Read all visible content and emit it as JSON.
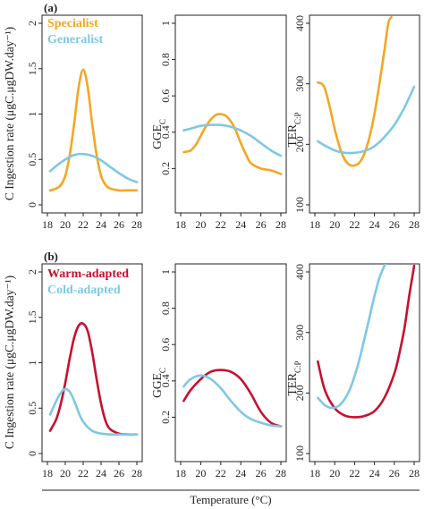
{
  "figure": {
    "xlabel": "Temperature (°C)",
    "left_ylabel": "C Ingestion rate (μgC.μgDW.day⁻¹)",
    "gge_ylabel_main": "GGE",
    "gge_ylabel_sub": "C",
    "ter_ylabel_main": "TER",
    "ter_ylabel_sub": "C:P"
  },
  "colors": {
    "orange": "#f5a623",
    "light_blue": "#7ec8e3",
    "red": "#c8102e"
  },
  "chart_data": [
    {
      "type": "line",
      "row": "a",
      "panel_label": "(a)",
      "quantity": "ingestion",
      "xlim": [
        18,
        28
      ],
      "ylim": [
        0,
        2
      ],
      "xticks": [
        18,
        20,
        22,
        24,
        26,
        28
      ],
      "yticks": [
        0,
        0.5,
        1,
        1.5,
        2
      ],
      "legend": [
        "Specialist",
        "Generalist"
      ],
      "series": [
        {
          "name": "Specialist",
          "color": "#f5a623",
          "x": [
            18.3,
            19,
            19.5,
            20,
            20.5,
            21,
            21.5,
            22,
            22.5,
            23,
            23.5,
            24,
            24.5,
            25,
            26,
            27,
            28
          ],
          "y": [
            0.16,
            0.18,
            0.22,
            0.32,
            0.55,
            0.9,
            1.3,
            1.49,
            1.3,
            0.9,
            0.55,
            0.32,
            0.22,
            0.18,
            0.16,
            0.16,
            0.16
          ]
        },
        {
          "name": "Generalist",
          "color": "#7ec8e3",
          "x": [
            18.3,
            19,
            20,
            21,
            22,
            23,
            24,
            25,
            26,
            27,
            28
          ],
          "y": [
            0.37,
            0.43,
            0.5,
            0.55,
            0.56,
            0.54,
            0.49,
            0.42,
            0.35,
            0.29,
            0.25
          ]
        }
      ]
    },
    {
      "type": "line",
      "row": "a",
      "quantity": "gge",
      "xlim": [
        18,
        28
      ],
      "ylim": [
        0,
        1
      ],
      "xticks": [
        18,
        20,
        22,
        24,
        26,
        28
      ],
      "yticks": [
        0.2,
        0.4,
        0.6,
        0.8,
        1
      ],
      "series": [
        {
          "name": "Specialist",
          "color": "#f5a623",
          "x": [
            18.3,
            19,
            19.5,
            20,
            20.5,
            21,
            21.5,
            22,
            22.5,
            23,
            23.5,
            24,
            24.5,
            25,
            26,
            27,
            28
          ],
          "y": [
            0.29,
            0.3,
            0.33,
            0.38,
            0.43,
            0.47,
            0.495,
            0.5,
            0.49,
            0.46,
            0.41,
            0.34,
            0.28,
            0.23,
            0.2,
            0.19,
            0.17
          ]
        },
        {
          "name": "Generalist",
          "color": "#7ec8e3",
          "x": [
            18.3,
            19,
            20,
            21,
            22,
            23,
            24,
            25,
            26,
            27,
            28
          ],
          "y": [
            0.41,
            0.42,
            0.435,
            0.44,
            0.44,
            0.43,
            0.41,
            0.38,
            0.34,
            0.3,
            0.27
          ]
        }
      ]
    },
    {
      "type": "line",
      "row": "a",
      "quantity": "ter",
      "xlim": [
        18,
        28
      ],
      "ylim": [
        100,
        400
      ],
      "xticks": [
        18,
        20,
        22,
        24,
        26,
        28
      ],
      "yticks": [
        100,
        200,
        300,
        400
      ],
      "series": [
        {
          "name": "Specialist",
          "color": "#f5a623",
          "x": [
            18.3,
            18.7,
            19,
            19.5,
            20,
            20.5,
            21,
            21.5,
            22,
            22.5,
            23,
            23.5,
            24,
            24.5,
            25,
            25.4,
            25.7
          ],
          "y": [
            302,
            300,
            292,
            262,
            225,
            195,
            175,
            166,
            165,
            170,
            185,
            212,
            250,
            300,
            355,
            400,
            410
          ]
        },
        {
          "name": "Generalist",
          "color": "#7ec8e3",
          "x": [
            18.3,
            19,
            20,
            21,
            22,
            23,
            24,
            25,
            26,
            27,
            28
          ],
          "y": [
            205,
            198,
            190,
            186,
            186,
            189,
            197,
            212,
            232,
            260,
            295
          ]
        }
      ]
    },
    {
      "type": "line",
      "row": "b",
      "panel_label": "(b)",
      "quantity": "ingestion",
      "xlim": [
        18,
        28
      ],
      "ylim": [
        0,
        2
      ],
      "xticks": [
        18,
        20,
        22,
        24,
        26,
        28
      ],
      "yticks": [
        0,
        0.5,
        1,
        1.5,
        2
      ],
      "legend": [
        "Warm-adapted",
        "Cold-adapted"
      ],
      "series": [
        {
          "name": "Warm-adapted",
          "color": "#c8102e",
          "x": [
            18.3,
            19,
            19.5,
            20,
            20.5,
            21,
            21.5,
            22,
            22.5,
            23,
            23.5,
            24,
            24.5,
            25,
            26,
            27,
            28
          ],
          "y": [
            0.25,
            0.38,
            0.55,
            0.78,
            1.05,
            1.28,
            1.41,
            1.43,
            1.35,
            1.12,
            0.82,
            0.55,
            0.36,
            0.27,
            0.22,
            0.21,
            0.21
          ]
        },
        {
          "name": "Cold-adapted",
          "color": "#7ec8e3",
          "x": [
            18.3,
            19,
            19.5,
            20,
            20.5,
            21,
            21.5,
            22,
            23,
            24,
            25,
            26,
            27,
            28
          ],
          "y": [
            0.43,
            0.58,
            0.67,
            0.71,
            0.68,
            0.58,
            0.45,
            0.35,
            0.25,
            0.22,
            0.21,
            0.21,
            0.21,
            0.21
          ]
        }
      ]
    },
    {
      "type": "line",
      "row": "b",
      "quantity": "gge",
      "xlim": [
        18,
        28
      ],
      "ylim": [
        0,
        1
      ],
      "xticks": [
        18,
        20,
        22,
        24,
        26,
        28
      ],
      "yticks": [
        0.2,
        0.4,
        0.6,
        0.8,
        1
      ],
      "series": [
        {
          "name": "Warm-adapted",
          "color": "#c8102e",
          "x": [
            18.3,
            19,
            20,
            21,
            22,
            23,
            24,
            25,
            26,
            27,
            28
          ],
          "y": [
            0.29,
            0.35,
            0.41,
            0.45,
            0.46,
            0.45,
            0.41,
            0.33,
            0.23,
            0.17,
            0.15
          ]
        },
        {
          "name": "Cold-adapted",
          "color": "#7ec8e3",
          "x": [
            18.3,
            19,
            20,
            21,
            22,
            23,
            24,
            25,
            26,
            27,
            28
          ],
          "y": [
            0.37,
            0.41,
            0.43,
            0.41,
            0.36,
            0.29,
            0.23,
            0.19,
            0.17,
            0.155,
            0.15
          ]
        }
      ]
    },
    {
      "type": "line",
      "row": "b",
      "quantity": "ter",
      "xlim": [
        18,
        28
      ],
      "ylim": [
        100,
        400
      ],
      "xticks": [
        18,
        20,
        22,
        24,
        26,
        28
      ],
      "yticks": [
        100,
        200,
        300,
        400
      ],
      "series": [
        {
          "name": "Warm-adapted",
          "color": "#c8102e",
          "x": [
            18.3,
            19,
            20,
            21,
            22,
            23,
            24,
            25,
            26,
            26.5,
            27,
            27.5,
            28
          ],
          "y": [
            252,
            205,
            175,
            163,
            160,
            162,
            170,
            192,
            232,
            265,
            305,
            360,
            410
          ]
        },
        {
          "name": "Cold-adapted",
          "color": "#7ec8e3",
          "x": [
            18.3,
            19,
            19.5,
            20,
            20.5,
            21,
            21.5,
            22,
            22.5,
            23,
            23.5,
            24,
            24.5,
            25,
            25.3
          ],
          "y": [
            192,
            180,
            176,
            176,
            180,
            190,
            205,
            228,
            256,
            290,
            325,
            360,
            390,
            410,
            420
          ]
        }
      ]
    }
  ]
}
